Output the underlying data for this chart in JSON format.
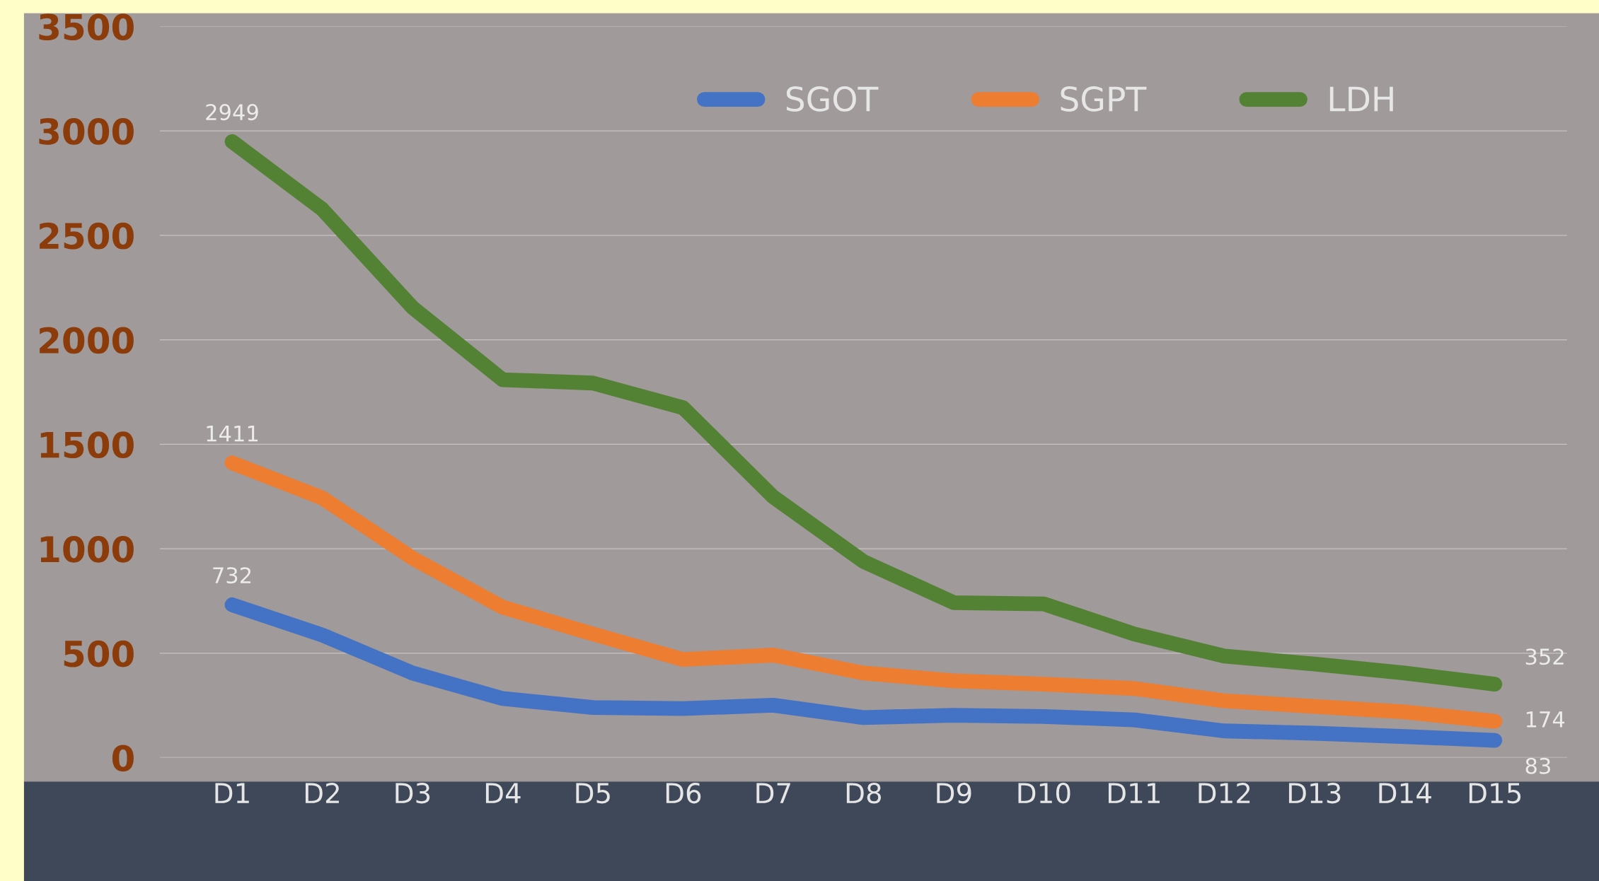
{
  "chart_data": {
    "type": "line",
    "categories": [
      "D1",
      "D2",
      "D3",
      "D4",
      "D5",
      "D6",
      "D7",
      "D8",
      "D9",
      "D10",
      "D11",
      "D12",
      "D13",
      "D14",
      "D15"
    ],
    "series": [
      {
        "name": "SGOT",
        "color": "#4472c4",
        "values": [
          732,
          587,
          405,
          283,
          240,
          235,
          251,
          192,
          203,
          197,
          181,
          128,
          117,
          101,
          83
        ],
        "value_labels": [
          "732",
          null,
          null,
          null,
          null,
          null,
          null,
          null,
          null,
          null,
          null,
          null,
          null,
          null,
          "83"
        ]
      },
      {
        "name": "SGPT",
        "color": "#ed7d31",
        "values": [
          1411,
          1243,
          955,
          720,
          592,
          470,
          491,
          405,
          368,
          352,
          331,
          272,
          245,
          219,
          174
        ],
        "value_labels": [
          "1411",
          null,
          null,
          null,
          null,
          null,
          null,
          null,
          null,
          null,
          null,
          null,
          null,
          null,
          "174"
        ]
      },
      {
        "name": "LDH",
        "color": "#548235",
        "values": [
          2949,
          2625,
          2155,
          1809,
          1793,
          1675,
          1248,
          939,
          742,
          736,
          592,
          486,
          448,
          405,
          352
        ],
        "value_labels": [
          "2949",
          null,
          null,
          null,
          null,
          null,
          null,
          null,
          null,
          null,
          null,
          null,
          null,
          null,
          "352"
        ]
      }
    ],
    "ylim": [
      0,
      3500
    ],
    "yticks": [
      0,
      500,
      1000,
      1500,
      2000,
      2500,
      3000,
      3500
    ],
    "grid": "y",
    "legend": "top right",
    "marker": "none",
    "line_style": "solid"
  }
}
